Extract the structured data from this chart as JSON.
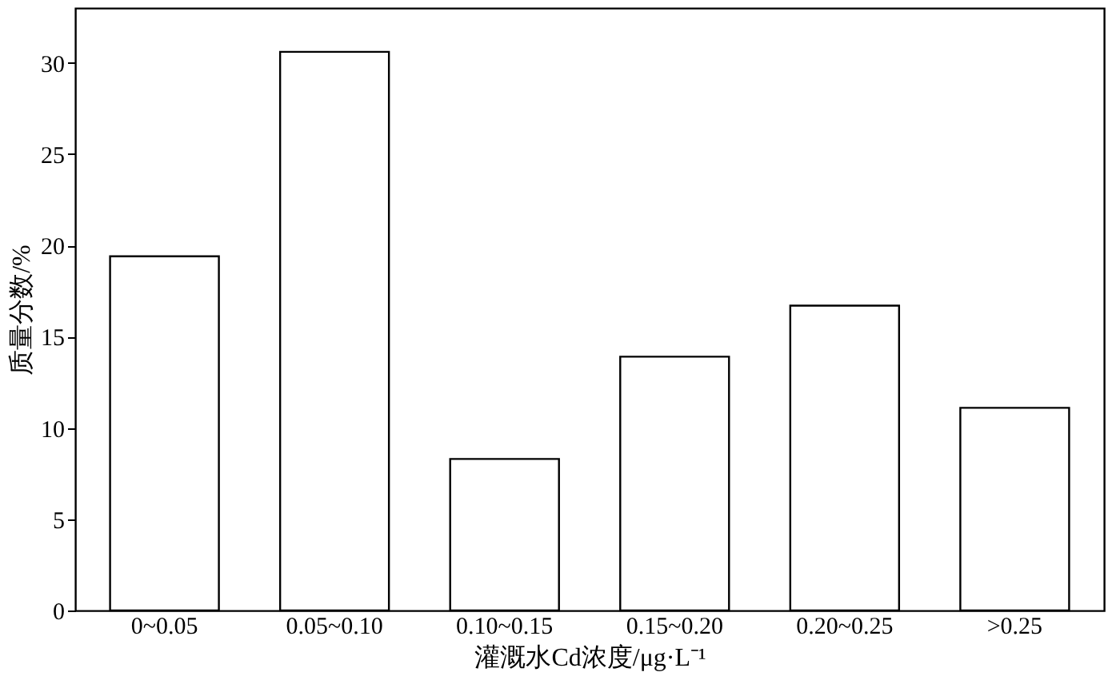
{
  "chart_data": {
    "type": "bar",
    "xlabel": "灌溉水Cd浓度/μg·L⁻¹",
    "ylabel": "质量分数/%",
    "categories": [
      "0~0.05",
      "0.05~0.10",
      "0.10~0.15",
      "0.15~0.20",
      "0.20~0.25",
      ">0.25"
    ],
    "values": [
      19.4,
      30.6,
      8.3,
      13.9,
      16.7,
      11.1
    ],
    "color": "#ffffff",
    "ylim": [
      0,
      33
    ],
    "yticks": [
      0,
      5,
      10,
      15,
      20,
      25,
      30
    ],
    "grid": false
  }
}
